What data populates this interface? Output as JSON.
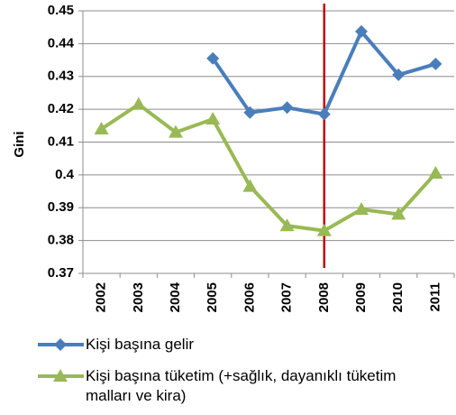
{
  "chart_data": {
    "type": "line",
    "y_label": "Gini",
    "categories": [
      "2002",
      "2003",
      "2004",
      "2005",
      "2006",
      "2007",
      "2008",
      "2009",
      "2010",
      "2011"
    ],
    "series": [
      {
        "name": "Kişi başına gelir",
        "color": "#4a7ebb",
        "marker": "diamond",
        "values": [
          null,
          null,
          null,
          0.4355,
          0.419,
          0.4205,
          0.4185,
          0.4437,
          0.4305,
          0.4338
        ]
      },
      {
        "name": "Kişi başına tüketim (+sağlık, dayanıklı tüketim malları ve kira)",
        "color": "#98b954",
        "marker": "triangle",
        "values": [
          0.414,
          0.4215,
          0.413,
          0.417,
          0.3965,
          0.3845,
          0.383,
          0.3895,
          0.388,
          0.4005
        ]
      }
    ],
    "ylim": [
      0.37,
      0.45
    ],
    "yticks": [
      0.37,
      0.38,
      0.39,
      0.4,
      0.41,
      0.42,
      0.43,
      0.44,
      0.45
    ],
    "grid": true
  }
}
